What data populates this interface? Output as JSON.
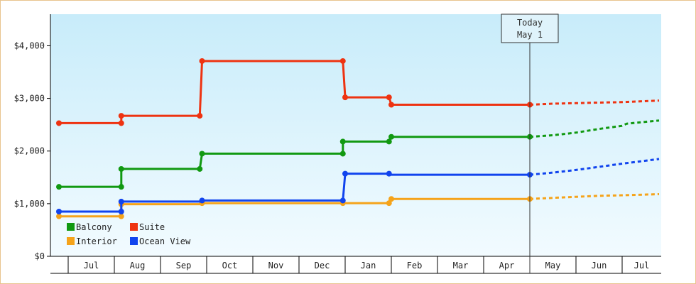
{
  "chart_data": {
    "type": "line",
    "ylim": [
      0,
      4600
    ],
    "yticks": [
      {
        "value": 0,
        "label": "$0"
      },
      {
        "value": 1000,
        "label": "$1,000"
      },
      {
        "value": 2000,
        "label": "$2,000"
      },
      {
        "value": 3000,
        "label": "$3,000"
      },
      {
        "value": 4000,
        "label": "$4,000"
      }
    ],
    "x_range": [
      -0.2,
      12.1
    ],
    "months": [
      "Jul",
      "Aug",
      "Sep",
      "Oct",
      "Nov",
      "Dec",
      "Jan",
      "Feb",
      "Mar",
      "Apr",
      "May",
      "Jun",
      "Jul"
    ],
    "today": {
      "x": 10.0,
      "line1": "Today",
      "line2": "May 1"
    },
    "legend_position": "bottom-left",
    "grid": false,
    "colors": {
      "bg_top": "#c8ecfa",
      "bg_bottom": "#f2fbff"
    },
    "series": [
      {
        "name": "Balcony",
        "color": "#119911",
        "points": [
          [
            -0.2,
            1320
          ],
          [
            1.15,
            1320
          ],
          [
            1.15,
            1660
          ],
          [
            2.85,
            1660
          ],
          [
            2.9,
            1950
          ],
          [
            5.95,
            1950
          ],
          [
            5.95,
            2180
          ],
          [
            6.95,
            2180
          ],
          [
            7.0,
            2270
          ],
          [
            10.0,
            2270
          ]
        ],
        "markers": [
          [
            -0.2,
            1320
          ],
          [
            1.15,
            1320
          ],
          [
            1.15,
            1660
          ],
          [
            2.85,
            1660
          ],
          [
            2.9,
            1950
          ],
          [
            5.95,
            1950
          ],
          [
            5.95,
            2180
          ],
          [
            6.95,
            2180
          ],
          [
            7.0,
            2270
          ],
          [
            10.0,
            2270
          ]
        ],
        "forecast": [
          [
            10.0,
            2270
          ],
          [
            10.5,
            2300
          ],
          [
            11.0,
            2350
          ],
          [
            11.5,
            2420
          ],
          [
            12.0,
            2480
          ],
          [
            12.1,
            2520
          ],
          [
            12.8,
            2580
          ]
        ]
      },
      {
        "name": "Suite",
        "color": "#ee3311",
        "points": [
          [
            -0.2,
            2530
          ],
          [
            1.15,
            2530
          ],
          [
            1.15,
            2670
          ],
          [
            2.85,
            2670
          ],
          [
            2.9,
            3710
          ],
          [
            5.95,
            3710
          ],
          [
            6.0,
            3020
          ],
          [
            6.95,
            3020
          ],
          [
            7.0,
            2880
          ],
          [
            10.0,
            2880
          ]
        ],
        "markers": [
          [
            -0.2,
            2530
          ],
          [
            1.15,
            2530
          ],
          [
            1.15,
            2670
          ],
          [
            2.85,
            2670
          ],
          [
            2.9,
            3710
          ],
          [
            5.95,
            3710
          ],
          [
            6.0,
            3020
          ],
          [
            6.95,
            3020
          ],
          [
            7.0,
            2880
          ],
          [
            10.0,
            2880
          ]
        ],
        "forecast": [
          [
            10.0,
            2880
          ],
          [
            10.5,
            2900
          ],
          [
            11.0,
            2910
          ],
          [
            11.5,
            2920
          ],
          [
            12.0,
            2930
          ],
          [
            12.8,
            2960
          ]
        ]
      },
      {
        "name": "Interior",
        "color": "#f5a31a",
        "points": [
          [
            -0.2,
            760
          ],
          [
            1.15,
            760
          ],
          [
            1.15,
            990
          ],
          [
            2.85,
            990
          ],
          [
            2.9,
            1010
          ],
          [
            5.95,
            1010
          ],
          [
            6.0,
            1010
          ],
          [
            6.95,
            1010
          ],
          [
            7.0,
            1090
          ],
          [
            10.0,
            1090
          ]
        ],
        "markers": [
          [
            -0.2,
            760
          ],
          [
            1.15,
            760
          ],
          [
            1.15,
            990
          ],
          [
            2.9,
            1010
          ],
          [
            5.95,
            1010
          ],
          [
            6.95,
            1010
          ],
          [
            7.0,
            1090
          ],
          [
            10.0,
            1090
          ]
        ],
        "forecast": [
          [
            10.0,
            1090
          ],
          [
            10.5,
            1110
          ],
          [
            11.0,
            1130
          ],
          [
            11.5,
            1150
          ],
          [
            12.0,
            1160
          ],
          [
            12.8,
            1180
          ]
        ]
      },
      {
        "name": "Ocean View",
        "color": "#1144ee",
        "points": [
          [
            -0.2,
            850
          ],
          [
            1.15,
            850
          ],
          [
            1.15,
            1040
          ],
          [
            2.85,
            1040
          ],
          [
            2.9,
            1060
          ],
          [
            5.95,
            1060
          ],
          [
            6.0,
            1570
          ],
          [
            6.95,
            1570
          ],
          [
            7.0,
            1550
          ],
          [
            10.0,
            1550
          ]
        ],
        "markers": [
          [
            -0.2,
            850
          ],
          [
            1.15,
            850
          ],
          [
            1.15,
            1040
          ],
          [
            2.9,
            1060
          ],
          [
            5.95,
            1060
          ],
          [
            6.0,
            1570
          ],
          [
            6.95,
            1570
          ],
          [
            10.0,
            1550
          ]
        ],
        "forecast": [
          [
            10.0,
            1550
          ],
          [
            10.5,
            1590
          ],
          [
            11.0,
            1640
          ],
          [
            11.5,
            1700
          ],
          [
            12.0,
            1760
          ],
          [
            12.8,
            1850
          ]
        ]
      }
    ]
  }
}
